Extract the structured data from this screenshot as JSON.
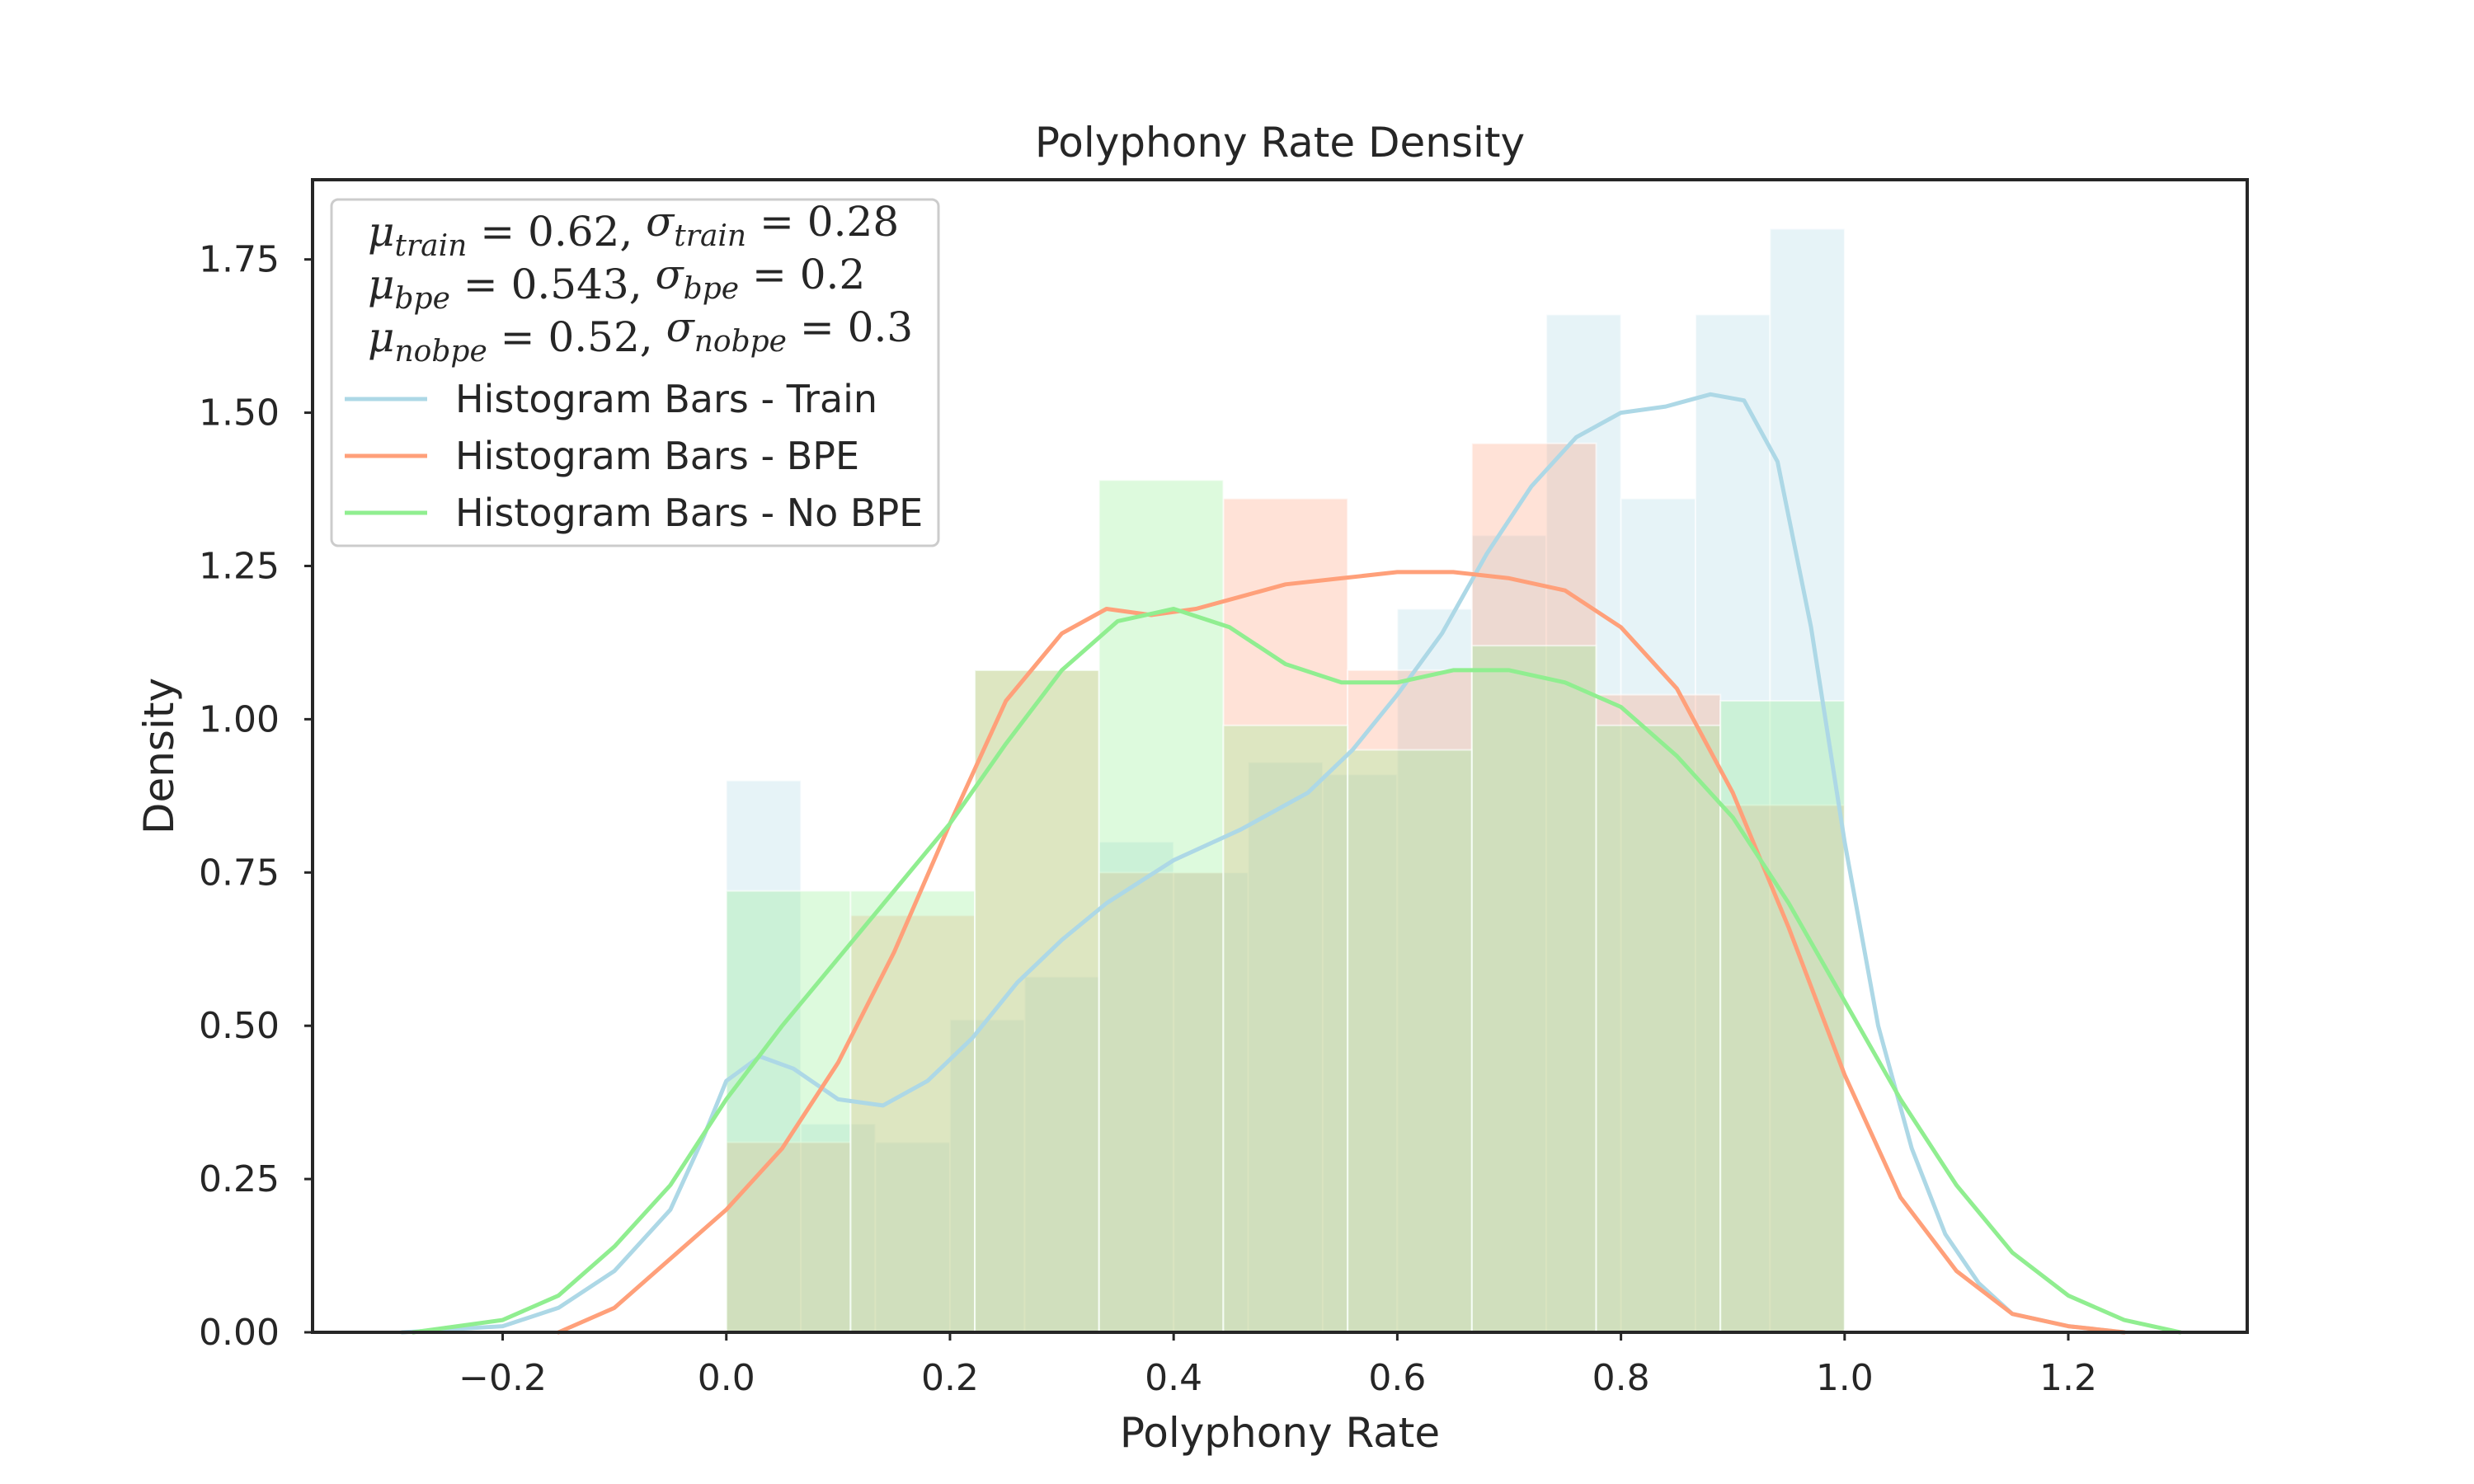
{
  "chart_data": {
    "type": "histogram+kde",
    "title": "Polyphony Rate Density",
    "xlabel": "Polyphony Rate",
    "ylabel": "Density",
    "xlim": [
      -0.37,
      1.36
    ],
    "ylim": [
      0,
      1.88
    ],
    "xticks": [
      -0.2,
      0.0,
      0.2,
      0.4,
      0.6,
      0.8,
      1.0,
      1.2
    ],
    "xtick_labels": [
      "−0.2",
      "0.0",
      "0.2",
      "0.4",
      "0.6",
      "0.8",
      "1.0",
      "1.2"
    ],
    "yticks": [
      0.0,
      0.25,
      0.5,
      0.75,
      1.0,
      1.25,
      1.5,
      1.75
    ],
    "ytick_labels": [
      "0.00",
      "0.25",
      "0.50",
      "0.75",
      "1.00",
      "1.25",
      "1.50",
      "1.75"
    ],
    "grid": false,
    "legend_position": "top-left",
    "stats_lines": [
      [
        "μ",
        "train",
        " = 0.62,  ",
        "σ",
        "train",
        " = 0.28"
      ],
      [
        "μ",
        "bpe",
        " = 0.543,  ",
        "σ",
        "bpe",
        " = 0.2"
      ],
      [
        "μ",
        "nobpe",
        " = 0.52,  ",
        "σ",
        "nobpe",
        " = 0.3"
      ]
    ],
    "series": [
      {
        "name": "Histogram Bars - Train",
        "line_color": "#ADD8E6",
        "bar_color": "#ADD8E6",
        "bar_opacity": 0.3,
        "bins": [
          [
            0.0,
            0.0667,
            0.9
          ],
          [
            0.0667,
            0.1333,
            0.34
          ],
          [
            0.1333,
            0.2,
            0.31
          ],
          [
            0.2,
            0.2667,
            0.51
          ],
          [
            0.2667,
            0.3333,
            0.58
          ],
          [
            0.3333,
            0.4,
            0.8
          ],
          [
            0.4,
            0.4667,
            0.75
          ],
          [
            0.4667,
            0.5333,
            0.93
          ],
          [
            0.5333,
            0.6,
            0.91
          ],
          [
            0.6,
            0.6667,
            1.18
          ],
          [
            0.6667,
            0.7333,
            1.3
          ],
          [
            0.7333,
            0.8,
            1.66
          ],
          [
            0.8,
            0.8667,
            1.36
          ],
          [
            0.8667,
            0.9333,
            1.66
          ],
          [
            0.9333,
            1.0,
            1.8
          ]
        ],
        "kde": [
          [
            -0.29,
            0.0
          ],
          [
            -0.2,
            0.01
          ],
          [
            -0.15,
            0.04
          ],
          [
            -0.1,
            0.1
          ],
          [
            -0.05,
            0.2
          ],
          [
            -0.02,
            0.32
          ],
          [
            0.0,
            0.41
          ],
          [
            0.03,
            0.45
          ],
          [
            0.06,
            0.43
          ],
          [
            0.1,
            0.38
          ],
          [
            0.14,
            0.37
          ],
          [
            0.18,
            0.41
          ],
          [
            0.22,
            0.48
          ],
          [
            0.26,
            0.57
          ],
          [
            0.3,
            0.64
          ],
          [
            0.34,
            0.7
          ],
          [
            0.4,
            0.77
          ],
          [
            0.46,
            0.82
          ],
          [
            0.52,
            0.88
          ],
          [
            0.56,
            0.95
          ],
          [
            0.6,
            1.04
          ],
          [
            0.64,
            1.14
          ],
          [
            0.68,
            1.27
          ],
          [
            0.72,
            1.38
          ],
          [
            0.76,
            1.46
          ],
          [
            0.8,
            1.5
          ],
          [
            0.84,
            1.51
          ],
          [
            0.88,
            1.53
          ],
          [
            0.91,
            1.52
          ],
          [
            0.94,
            1.42
          ],
          [
            0.97,
            1.15
          ],
          [
            1.0,
            0.8
          ],
          [
            1.03,
            0.5
          ],
          [
            1.06,
            0.3
          ],
          [
            1.09,
            0.16
          ],
          [
            1.12,
            0.08
          ],
          [
            1.15,
            0.03
          ],
          [
            1.2,
            0.01
          ],
          [
            1.25,
            0.0
          ]
        ]
      },
      {
        "name": "Histogram Bars - BPE",
        "line_color": "#FFA07A",
        "bar_color": "#FFA07A",
        "bar_opacity": 0.3,
        "bins": [
          [
            0.0,
            0.1111,
            0.31
          ],
          [
            0.1111,
            0.2222,
            0.68
          ],
          [
            0.2222,
            0.3333,
            1.08
          ],
          [
            0.3333,
            0.4444,
            0.75
          ],
          [
            0.4444,
            0.5556,
            1.36
          ],
          [
            0.5556,
            0.6667,
            1.08
          ],
          [
            0.6667,
            0.7778,
            1.45
          ],
          [
            0.7778,
            0.8889,
            1.04
          ],
          [
            0.8889,
            1.0,
            0.86
          ]
        ],
        "kde": [
          [
            -0.15,
            0.0
          ],
          [
            -0.1,
            0.04
          ],
          [
            -0.05,
            0.12
          ],
          [
            0.0,
            0.2
          ],
          [
            0.05,
            0.3
          ],
          [
            0.1,
            0.44
          ],
          [
            0.15,
            0.62
          ],
          [
            0.2,
            0.83
          ],
          [
            0.25,
            1.03
          ],
          [
            0.3,
            1.14
          ],
          [
            0.34,
            1.18
          ],
          [
            0.38,
            1.17
          ],
          [
            0.42,
            1.18
          ],
          [
            0.46,
            1.2
          ],
          [
            0.5,
            1.22
          ],
          [
            0.55,
            1.23
          ],
          [
            0.6,
            1.24
          ],
          [
            0.65,
            1.24
          ],
          [
            0.7,
            1.23
          ],
          [
            0.75,
            1.21
          ],
          [
            0.8,
            1.15
          ],
          [
            0.85,
            1.05
          ],
          [
            0.9,
            0.88
          ],
          [
            0.95,
            0.66
          ],
          [
            1.0,
            0.42
          ],
          [
            1.05,
            0.22
          ],
          [
            1.1,
            0.1
          ],
          [
            1.15,
            0.03
          ],
          [
            1.2,
            0.01
          ],
          [
            1.25,
            0.0
          ]
        ]
      },
      {
        "name": "Histogram Bars - No BPE",
        "line_color": "#90EE90",
        "bar_color": "#90EE90",
        "bar_opacity": 0.3,
        "bins": [
          [
            0.0,
            0.1111,
            0.72
          ],
          [
            0.1111,
            0.2222,
            0.72
          ],
          [
            0.2222,
            0.3333,
            1.08
          ],
          [
            0.3333,
            0.4444,
            1.39
          ],
          [
            0.4444,
            0.5556,
            0.99
          ],
          [
            0.5556,
            0.6667,
            0.95
          ],
          [
            0.6667,
            0.7778,
            1.12
          ],
          [
            0.7778,
            0.8889,
            0.99
          ],
          [
            0.8889,
            1.0,
            1.03
          ]
        ],
        "kde": [
          [
            -0.28,
            0.0
          ],
          [
            -0.2,
            0.02
          ],
          [
            -0.15,
            0.06
          ],
          [
            -0.1,
            0.14
          ],
          [
            -0.05,
            0.24
          ],
          [
            0.0,
            0.38
          ],
          [
            0.05,
            0.5
          ],
          [
            0.1,
            0.61
          ],
          [
            0.15,
            0.72
          ],
          [
            0.2,
            0.83
          ],
          [
            0.25,
            0.96
          ],
          [
            0.3,
            1.08
          ],
          [
            0.35,
            1.16
          ],
          [
            0.4,
            1.18
          ],
          [
            0.45,
            1.15
          ],
          [
            0.5,
            1.09
          ],
          [
            0.55,
            1.06
          ],
          [
            0.6,
            1.06
          ],
          [
            0.65,
            1.08
          ],
          [
            0.7,
            1.08
          ],
          [
            0.75,
            1.06
          ],
          [
            0.8,
            1.02
          ],
          [
            0.85,
            0.94
          ],
          [
            0.9,
            0.84
          ],
          [
            0.95,
            0.7
          ],
          [
            1.0,
            0.54
          ],
          [
            1.05,
            0.38
          ],
          [
            1.1,
            0.24
          ],
          [
            1.15,
            0.13
          ],
          [
            1.2,
            0.06
          ],
          [
            1.25,
            0.02
          ],
          [
            1.3,
            0.0
          ]
        ]
      }
    ]
  }
}
